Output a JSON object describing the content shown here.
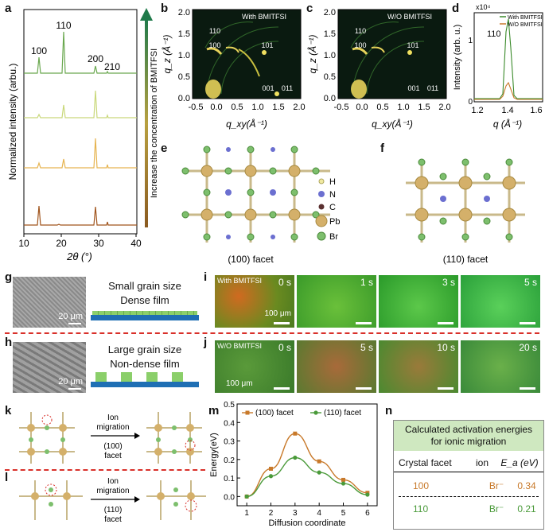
{
  "panel_labels": {
    "a": "a",
    "b": "b",
    "c": "c",
    "d": "d",
    "e": "e",
    "f": "f",
    "g": "g",
    "h": "h",
    "i": "i",
    "j": "j",
    "k": "k",
    "l": "l",
    "m": "m",
    "n": "n"
  },
  "colors": {
    "green_dark": "#2a8a2a",
    "green_light": "#8fc66a",
    "gold": "#e6b450",
    "orange": "#c8792a",
    "brown": "#a0541c",
    "arrow": "#1f7a4a",
    "dashed_red": "#d9302a",
    "substrate_blue": "#1f6fb4",
    "grain_green": "#8bcf6a",
    "pb": "#d4b06a",
    "br": "#7dbf6d",
    "n_atom": "#6b6fd0",
    "c_atom": "#5a3030",
    "h_atom": "#f0e9a0"
  },
  "panel_a": {
    "ylabel": "Normalized intensity (arbu.)",
    "xlabel": "2θ (°)",
    "xticks": [
      "10",
      "20",
      "30",
      "40"
    ],
    "peak_labels": [
      "100",
      "110",
      "200",
      "210"
    ],
    "arrow_label": "Increase the concentration of BMITFSI"
  },
  "panel_b": {
    "legend": "With BMITFSI",
    "ylabel": "q_z (Å⁻¹)",
    "xlabel": "q_xy(Å⁻¹)",
    "xticks": [
      "-0.5",
      "0.0",
      "0.5",
      "1.0",
      "1.5",
      "2.0"
    ],
    "yticks": [
      "0.0",
      "0.5",
      "1.0",
      "1.5",
      "2.0"
    ],
    "peak_labels": [
      "110",
      "100",
      "101",
      "001",
      "011"
    ]
  },
  "panel_c": {
    "legend": "W/O BMITFSI",
    "ylabel": "q_z (Å⁻¹)",
    "xlabel": "q_xy(Å⁻¹)",
    "xticks": [
      "-0.5",
      "0.0",
      "0.5",
      "1.0",
      "1.5",
      "2.0"
    ],
    "yticks": [
      "0.0",
      "0.5",
      "1.0",
      "1.5",
      "2.0"
    ],
    "peak_labels": [
      "110",
      "100",
      "101",
      "001",
      "011"
    ]
  },
  "panel_d": {
    "multiplier": "x10⁴",
    "ylabel": "Intensity (arb. u.)",
    "xlabel": "q (Å⁻¹)",
    "xticks": [
      "1.2",
      "1.4",
      "1.6"
    ],
    "yticks": [
      "0",
      "1"
    ],
    "peak_label": "110",
    "legend": [
      "With BMITFSI",
      "W/O BMITFSI"
    ]
  },
  "panel_e": {
    "caption": "(100) facet",
    "legend": [
      {
        "sym": "H"
      },
      {
        "sym": "N"
      },
      {
        "sym": "C"
      },
      {
        "sym": "Pb"
      },
      {
        "sym": "Br"
      }
    ]
  },
  "panel_f": {
    "caption": "(110) facet"
  },
  "panel_g": {
    "scale": "20 μm",
    "line1": "Small grain size",
    "line2": "Dense film"
  },
  "panel_h": {
    "scale": "20 μm",
    "line1": "Large grain size",
    "line2": "Non-dense film"
  },
  "panel_i": {
    "tag": "With BMITFSI",
    "scale": "100 μm",
    "times": [
      "0 s",
      "1 s",
      "3 s",
      "5 s"
    ]
  },
  "panel_j": {
    "tag": "W/O BMITFSI",
    "scale": "100 μm",
    "times": [
      "0 s",
      "5 s",
      "10 s",
      "20 s"
    ]
  },
  "panel_k": {
    "arrow_text": [
      "Ion",
      "migration",
      "(100)",
      "facet"
    ]
  },
  "panel_l": {
    "arrow_text": [
      "Ion",
      "migration",
      "(110)",
      "facet"
    ]
  },
  "chart_data": [
    {
      "type": "line",
      "title": "",
      "xlabel": "Diffusion coordinate",
      "ylabel": "Energy(eV)",
      "x": [
        1,
        2,
        3,
        4,
        5,
        6
      ],
      "xlim": [
        0.6,
        6.4
      ],
      "ylim": [
        -0.05,
        0.5
      ],
      "xticks": [
        "1",
        "2",
        "3",
        "4",
        "5",
        "6"
      ],
      "yticks": [
        "0.0",
        "0.1",
        "0.2",
        "0.3",
        "0.4",
        "0.5"
      ],
      "series": [
        {
          "name": "(100) facet",
          "color": "#c8792a",
          "values": [
            0.0,
            0.15,
            0.34,
            0.19,
            0.09,
            0.02
          ]
        },
        {
          "name": "(110) facet",
          "color": "#4a9a3a",
          "values": [
            0.0,
            0.11,
            0.21,
            0.13,
            0.07,
            0.01
          ]
        }
      ]
    },
    {
      "type": "table",
      "title": "Calculated activation energies for ionic migration",
      "columns": [
        "Crystal facet",
        "ion",
        "E_a (eV)"
      ],
      "rows": [
        [
          "100",
          "Br⁻",
          "0.34"
        ],
        [
          "110",
          "Br⁻",
          "0.21"
        ]
      ]
    }
  ]
}
